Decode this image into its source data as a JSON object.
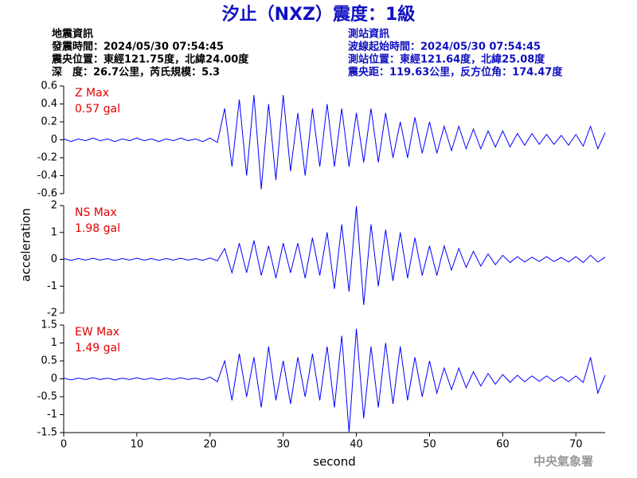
{
  "header": {
    "title": "汐止（NXZ）震度：1級",
    "left": [
      "地震資訊",
      "發震時間：2024/05/30 07:54:45",
      "震央位置：東經121.75度，北緯24.00度",
      "深　度：26.7公里，芮氏規模：5.3"
    ],
    "right": [
      "測站資訊",
      "波線起始時間：2024/05/30 07:54:45",
      "測站位置：東經121.64度，北緯25.08度",
      "震央距：119.63公里，反方位角：174.47度"
    ]
  },
  "footer": "中央氣象署",
  "chart_data": [
    {
      "type": "line",
      "annotation": [
        "Z Max",
        "0.57 gal"
      ],
      "xlim": [
        0,
        74
      ],
      "ylim": [
        -0.6,
        0.6
      ],
      "yticks": [
        -0.6,
        -0.4,
        -0.2,
        0,
        0.2,
        0.4,
        0.6
      ],
      "x": [
        0,
        1,
        2,
        3,
        4,
        5,
        6,
        7,
        8,
        9,
        10,
        11,
        12,
        13,
        14,
        15,
        16,
        17,
        18,
        19,
        20,
        21,
        22,
        23,
        24,
        25,
        26,
        27,
        28,
        29,
        30,
        31,
        32,
        33,
        34,
        35,
        36,
        37,
        38,
        39,
        40,
        41,
        42,
        43,
        44,
        45,
        46,
        47,
        48,
        49,
        50,
        51,
        52,
        53,
        54,
        55,
        56,
        57,
        58,
        59,
        60,
        61,
        62,
        63,
        64,
        65,
        66,
        67,
        68,
        69,
        70,
        71,
        72,
        73,
        74
      ],
      "series": [
        {
          "color": "#0000ff",
          "values": [
            0.01,
            -0.02,
            0.01,
            -0.01,
            0.02,
            -0.01,
            0.01,
            -0.02,
            0.01,
            -0.01,
            0.02,
            -0.01,
            0.01,
            -0.02,
            0.01,
            -0.01,
            0.02,
            -0.01,
            0.01,
            -0.02,
            0.02,
            -0.03,
            0.35,
            -0.3,
            0.45,
            -0.4,
            0.5,
            -0.55,
            0.4,
            -0.45,
            0.5,
            -0.35,
            0.3,
            -0.4,
            0.35,
            -0.3,
            0.4,
            -0.3,
            0.35,
            -0.3,
            0.3,
            -0.25,
            0.35,
            -0.25,
            0.3,
            -0.2,
            0.2,
            -0.2,
            0.25,
            -0.15,
            0.2,
            -0.15,
            0.15,
            -0.12,
            0.15,
            -0.1,
            0.12,
            -0.1,
            0.1,
            -0.08,
            0.1,
            -0.08,
            0.07,
            -0.06,
            0.07,
            -0.05,
            0.06,
            -0.05,
            0.05,
            -0.06,
            0.06,
            -0.07,
            0.15,
            -0.1,
            0.08
          ]
        }
      ]
    },
    {
      "type": "line",
      "annotation": [
        "NS Max",
        "1.98 gal"
      ],
      "ylabel": "acceleration",
      "xlim": [
        0,
        74
      ],
      "ylim": [
        -2,
        2
      ],
      "yticks": [
        -2,
        -1,
        0,
        1,
        2
      ],
      "x": [
        0,
        1,
        2,
        3,
        4,
        5,
        6,
        7,
        8,
        9,
        10,
        11,
        12,
        13,
        14,
        15,
        16,
        17,
        18,
        19,
        20,
        21,
        22,
        23,
        24,
        25,
        26,
        27,
        28,
        29,
        30,
        31,
        32,
        33,
        34,
        35,
        36,
        37,
        38,
        39,
        40,
        41,
        42,
        43,
        44,
        45,
        46,
        47,
        48,
        49,
        50,
        51,
        52,
        53,
        54,
        55,
        56,
        57,
        58,
        59,
        60,
        61,
        62,
        63,
        64,
        65,
        66,
        67,
        68,
        69,
        70,
        71,
        72,
        73,
        74
      ],
      "series": [
        {
          "color": "#0000ff",
          "values": [
            0.03,
            -0.04,
            0.03,
            -0.03,
            0.04,
            -0.03,
            0.03,
            -0.04,
            0.03,
            -0.03,
            0.04,
            -0.03,
            0.03,
            -0.04,
            0.03,
            -0.03,
            0.04,
            -0.03,
            0.03,
            -0.04,
            0.05,
            -0.06,
            0.4,
            -0.5,
            0.6,
            -0.5,
            0.7,
            -0.6,
            0.5,
            -0.7,
            0.6,
            -0.5,
            0.6,
            -0.7,
            0.8,
            -0.6,
            1.0,
            -1.1,
            1.3,
            -1.2,
            1.98,
            -1.7,
            1.3,
            -1.0,
            1.1,
            -0.8,
            1.0,
            -0.7,
            0.8,
            -0.6,
            0.5,
            -0.6,
            0.5,
            -0.4,
            0.4,
            -0.3,
            0.3,
            -0.25,
            0.2,
            -0.2,
            0.15,
            -0.12,
            0.1,
            -0.1,
            0.08,
            -0.08,
            0.1,
            -0.08,
            0.07,
            -0.1,
            0.1,
            -0.12,
            0.15,
            -0.1,
            0.08
          ]
        }
      ]
    },
    {
      "type": "line",
      "annotation": [
        "EW Max",
        "1.49 gal"
      ],
      "xlabel": "second",
      "xlim": [
        0,
        74
      ],
      "xticks": [
        0,
        10,
        20,
        30,
        40,
        50,
        60,
        70
      ],
      "ylim": [
        -1.5,
        1.5
      ],
      "yticks": [
        -1.5,
        -1,
        -0.5,
        0,
        0.5,
        1,
        1.5
      ],
      "x": [
        0,
        1,
        2,
        3,
        4,
        5,
        6,
        7,
        8,
        9,
        10,
        11,
        12,
        13,
        14,
        15,
        16,
        17,
        18,
        19,
        20,
        21,
        22,
        23,
        24,
        25,
        26,
        27,
        28,
        29,
        30,
        31,
        32,
        33,
        34,
        35,
        36,
        37,
        38,
        39,
        40,
        41,
        42,
        43,
        44,
        45,
        46,
        47,
        48,
        49,
        50,
        51,
        52,
        53,
        54,
        55,
        56,
        57,
        58,
        59,
        60,
        61,
        62,
        63,
        64,
        65,
        66,
        67,
        68,
        69,
        70,
        71,
        72,
        73,
        74
      ],
      "series": [
        {
          "color": "#0000ff",
          "values": [
            0.02,
            -0.03,
            0.02,
            -0.02,
            0.03,
            -0.02,
            0.02,
            -0.03,
            0.02,
            -0.02,
            0.03,
            -0.02,
            0.02,
            -0.03,
            0.02,
            -0.02,
            0.03,
            -0.02,
            0.02,
            -0.03,
            0.05,
            -0.08,
            0.5,
            -0.6,
            0.7,
            -0.5,
            0.6,
            -0.8,
            0.9,
            -0.6,
            0.5,
            -0.7,
            0.6,
            -0.5,
            0.7,
            -0.6,
            0.9,
            -0.8,
            1.2,
            -1.49,
            1.4,
            -1.1,
            0.9,
            -0.8,
            1.0,
            -0.7,
            0.9,
            -0.6,
            0.6,
            -0.5,
            0.5,
            -0.4,
            0.3,
            -0.3,
            0.3,
            -0.25,
            0.2,
            -0.2,
            0.15,
            -0.15,
            0.12,
            -0.1,
            0.1,
            -0.08,
            0.08,
            -0.07,
            0.08,
            -0.07,
            0.06,
            -0.08,
            0.08,
            -0.1,
            0.6,
            -0.4,
            0.1
          ]
        }
      ]
    }
  ]
}
